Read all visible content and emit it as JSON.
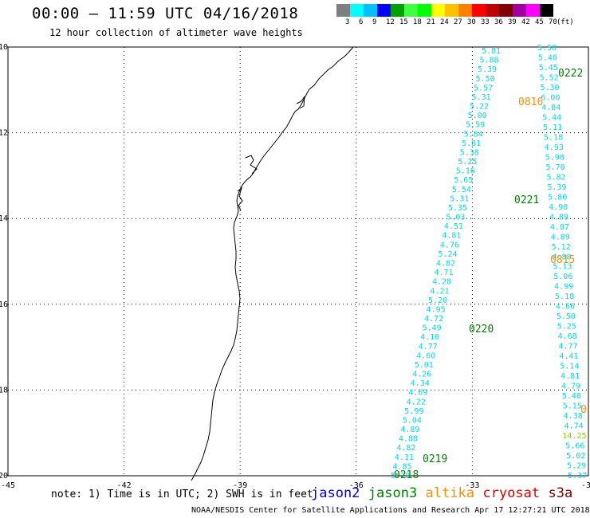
{
  "header": {
    "title": "00:00 – 11:59 UTC 04/16/2018",
    "subtitle": "12 hour collection of altimeter wave heights"
  },
  "legend": {
    "colors": [
      "#7f7f7f",
      "#00ffff",
      "#00c0ff",
      "#0000ff",
      "#00a000",
      "#40ff40",
      "#00ff00",
      "#ffff00",
      "#ffc000",
      "#ff8000",
      "#ff0000",
      "#c00000",
      "#800000",
      "#a000a0",
      "#ff00ff",
      "#000000"
    ],
    "labels": [
      "3",
      "6",
      "9",
      "12",
      "15",
      "18",
      "21",
      "24",
      "27",
      "30",
      "33",
      "36",
      "39",
      "42",
      "45",
      "70",
      "(ft)"
    ]
  },
  "map": {
    "lon_ticks": [
      "-45",
      "-42",
      "-39",
      "-36",
      "-33",
      "-30"
    ],
    "lat_ticks": [
      "-10",
      "-12",
      "-14",
      "-16",
      "-18",
      "-20"
    ],
    "colors": {
      "wave": "#00d8e8",
      "jason3": "#008000",
      "altika": "#ff8c00",
      "sentinel": "#80d800"
    },
    "pass_labels": [
      {
        "text": "0222",
        "sat": "jason3"
      },
      {
        "text": "0816",
        "sat": "altika"
      },
      {
        "text": "0221",
        "sat": "jason3"
      },
      {
        "text": "0815",
        "sat": "altika"
      },
      {
        "text": "0220",
        "sat": "jason3"
      },
      {
        "text": "0219",
        "sat": "jason3"
      },
      {
        "text": "0218",
        "sat": "jason3"
      },
      {
        "text": "0",
        "sat": "altika"
      }
    ],
    "track_west": {
      "values": [
        "5.81",
        "5.88",
        "5.39",
        "5.50",
        "5.57",
        "5.31",
        "5.22",
        "5.00",
        "5.59",
        "5.84",
        "5.81",
        "5.38",
        "5.25",
        "5.16",
        "5.65",
        "5.54",
        "5.31",
        "5.35",
        "5.03",
        "4.51",
        "4.81",
        "4.76",
        "5.24",
        "4.82",
        "4.71",
        "4.28",
        "4.21",
        "5.20",
        "4.95",
        "4.72",
        "5.49",
        "4.10",
        "4.77",
        "4.60",
        "5.01",
        "4.26",
        "4.34",
        "4.69",
        "4.22",
        "5.99",
        "5.04",
        "4.89",
        "4.88",
        "4.82",
        "4.11",
        "4.85",
        "5.20"
      ]
    },
    "track_east": {
      "values": [
        "5.50",
        "5.40",
        "5.45",
        "5.52",
        "5.30",
        "6.00",
        "4.84",
        "5.44",
        "5.11",
        "5.18",
        "4.93",
        "5.98",
        "5.70",
        "5.82",
        "5.39",
        "5.80",
        "4.90",
        "4.89",
        "4.87",
        "4.89",
        "5.12",
        "4.88",
        "5.13",
        "5.06",
        "4.99",
        "5.18",
        "4.66",
        "5.50",
        "5.25",
        "4.68",
        "4.77",
        "4.41",
        "5.14",
        "4.81",
        "4.79",
        "5.48",
        "5.15",
        "4.38",
        "4.74",
        "14.25",
        "5.66",
        "5.02",
        "5.29",
        "5.37"
      ]
    },
    "overlap_values": [
      {
        "text": "14.25",
        "sat": "sentinel"
      }
    ]
  },
  "footer": {
    "note": "note: 1) Time is in UTC; 2) SWH is in feet",
    "satellites": [
      {
        "name": "jason2",
        "color": "#0000dd"
      },
      {
        "name": "jason3",
        "color": "#008000"
      },
      {
        "name": "altika",
        "color": "#ff8c00"
      },
      {
        "name": "cryosat",
        "color": "#dd0000"
      },
      {
        "name": "s3a",
        "color": "#800000"
      }
    ],
    "credit": "NOAA/NESDIS Center for Satellite Applications and Research   Apr 17 12:27:21 UTC 2018"
  }
}
